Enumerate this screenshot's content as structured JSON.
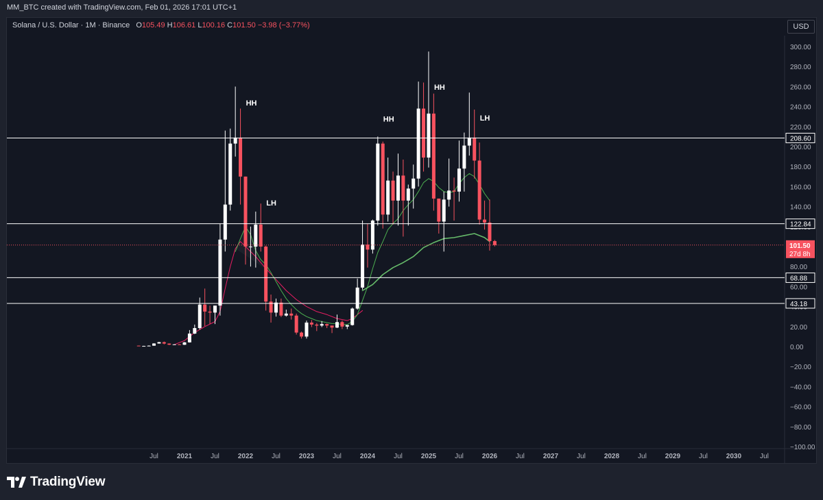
{
  "header": {
    "title": "MM_BTC created with TradingView.com, Feb 01, 2026 17:01 UTC+1"
  },
  "symbol": {
    "name": "Solana / U.S. Dollar · 1M · Binance",
    "o_label": "O",
    "o_value": "105.49",
    "h_label": "H",
    "h_value": "106.61",
    "l_label": "L",
    "l_value": "100.16",
    "c_label": "C",
    "c_value": "101.50",
    "change": "−3.98 (−3.77%)"
  },
  "currency": "USD",
  "brand": {
    "name": "TradingView"
  },
  "colors": {
    "up": "#ffffff",
    "down": "#f7525f",
    "background": "#131722",
    "ma_fast": "#4caf50",
    "ma_slow": "#e91e63",
    "ma_long": "#66bb6a",
    "hline": "#ffffff",
    "price_line": "#f7525f"
  },
  "chart_data": {
    "type": "candlestick",
    "ylim": [
      -100,
      310
    ],
    "y_ticks": [
      300,
      280,
      260,
      240,
      220,
      200,
      180,
      160,
      140,
      120,
      100,
      80,
      60,
      40,
      20,
      0,
      -20,
      -40,
      -60,
      -80,
      -100
    ],
    "y_tick_labels": [
      "300.00",
      "280.00",
      "260.00",
      "240.00",
      "220.00",
      "200.00",
      "180.00",
      "160.00",
      "140.00",
      "120.00",
      "100.00",
      "80.00",
      "60.00",
      "40.00",
      "20.00",
      "0.00",
      "−20.00",
      "−40.00",
      "−60.00",
      "−80.00",
      "−100.00"
    ],
    "x_ticks": [
      {
        "label": "Jul",
        "date": "2020-07"
      },
      {
        "label": "2021",
        "date": "2021-01"
      },
      {
        "label": "Jul",
        "date": "2021-07"
      },
      {
        "label": "2022",
        "date": "2022-01"
      },
      {
        "label": "Jul",
        "date": "2022-07"
      },
      {
        "label": "2023",
        "date": "2023-01"
      },
      {
        "label": "Jul",
        "date": "2023-07"
      },
      {
        "label": "2024",
        "date": "2024-01"
      },
      {
        "label": "Jul",
        "date": "2024-07"
      },
      {
        "label": "2025",
        "date": "2025-01"
      },
      {
        "label": "Jul",
        "date": "2025-07"
      },
      {
        "label": "2026",
        "date": "2026-01"
      },
      {
        "label": "Jul",
        "date": "2026-07"
      },
      {
        "label": "2027",
        "date": "2027-01"
      },
      {
        "label": "Jul",
        "date": "2027-07"
      },
      {
        "label": "2028",
        "date": "2028-01"
      },
      {
        "label": "Jul",
        "date": "2028-07"
      },
      {
        "label": "2029",
        "date": "2029-01"
      },
      {
        "label": "Jul",
        "date": "2029-07"
      },
      {
        "label": "2030",
        "date": "2030-01"
      },
      {
        "label": "Jul",
        "date": "2030-07"
      }
    ],
    "candles": [
      {
        "date": "2020-04",
        "o": 0.95,
        "h": 1.0,
        "l": 0.5,
        "c": 0.6
      },
      {
        "date": "2020-05",
        "o": 0.6,
        "h": 0.8,
        "l": 0.5,
        "c": 0.65
      },
      {
        "date": "2020-06",
        "o": 0.65,
        "h": 1.2,
        "l": 0.6,
        "c": 0.9
      },
      {
        "date": "2020-07",
        "o": 0.9,
        "h": 3.3,
        "l": 0.9,
        "c": 3.1
      },
      {
        "date": "2020-08",
        "o": 3.1,
        "h": 4.7,
        "l": 2.9,
        "c": 4.4
      },
      {
        "date": "2020-09",
        "o": 4.4,
        "h": 5.0,
        "l": 2.2,
        "c": 3.0
      },
      {
        "date": "2020-10",
        "o": 3.0,
        "h": 3.2,
        "l": 1.5,
        "c": 1.9
      },
      {
        "date": "2020-11",
        "o": 1.9,
        "h": 2.4,
        "l": 1.8,
        "c": 2.2
      },
      {
        "date": "2020-12",
        "o": 2.2,
        "h": 2.5,
        "l": 1.8,
        "c": 1.8
      },
      {
        "date": "2021-01",
        "o": 1.8,
        "h": 4.5,
        "l": 1.6,
        "c": 4.2
      },
      {
        "date": "2021-02",
        "o": 4.2,
        "h": 16.5,
        "l": 4.0,
        "c": 13.0
      },
      {
        "date": "2021-03",
        "o": 13.0,
        "h": 22.0,
        "l": 12.5,
        "c": 18.5
      },
      {
        "date": "2021-04",
        "o": 18.5,
        "h": 49.0,
        "l": 17.0,
        "c": 42.0
      },
      {
        "date": "2021-05",
        "o": 42.0,
        "h": 58.0,
        "l": 20.5,
        "c": 35.0
      },
      {
        "date": "2021-06",
        "o": 35.0,
        "h": 41.0,
        "l": 22.5,
        "c": 34.0
      },
      {
        "date": "2021-07",
        "o": 34.0,
        "h": 39.0,
        "l": 22.5,
        "c": 41.0
      },
      {
        "date": "2021-08",
        "o": 41.0,
        "h": 123.0,
        "l": 31.0,
        "c": 107.0
      },
      {
        "date": "2021-09",
        "o": 107.0,
        "h": 216.0,
        "l": 95.0,
        "c": 142.0
      },
      {
        "date": "2021-10",
        "o": 142.0,
        "h": 218.0,
        "l": 136.0,
        "c": 203.0
      },
      {
        "date": "2021-11",
        "o": 203.0,
        "h": 260.0,
        "l": 190.0,
        "c": 209.0
      },
      {
        "date": "2021-12",
        "o": 209.0,
        "h": 238.0,
        "l": 142.0,
        "c": 170.0
      },
      {
        "date": "2022-01",
        "o": 170.0,
        "h": 170.0,
        "l": 82.0,
        "c": 100.0
      },
      {
        "date": "2022-02",
        "o": 100.0,
        "h": 120.0,
        "l": 80.0,
        "c": 100.0
      },
      {
        "date": "2022-03",
        "o": 100.0,
        "h": 135.0,
        "l": 79.0,
        "c": 122.0
      },
      {
        "date": "2022-04",
        "o": 122.0,
        "h": 143.0,
        "l": 95.0,
        "c": 100.0
      },
      {
        "date": "2022-05",
        "o": 100.0,
        "h": 101.0,
        "l": 36.0,
        "c": 45.0
      },
      {
        "date": "2022-06",
        "o": 45.0,
        "h": 52.0,
        "l": 24.0,
        "c": 34.0
      },
      {
        "date": "2022-07",
        "o": 34.0,
        "h": 48.0,
        "l": 30.0,
        "c": 44.0
      },
      {
        "date": "2022-08",
        "o": 44.0,
        "h": 48.0,
        "l": 29.5,
        "c": 31.0
      },
      {
        "date": "2022-09",
        "o": 31.0,
        "h": 37.0,
        "l": 30.0,
        "c": 33.0
      },
      {
        "date": "2022-10",
        "o": 33.0,
        "h": 38.0,
        "l": 27.0,
        "c": 31.0
      },
      {
        "date": "2022-11",
        "o": 31.0,
        "h": 33.0,
        "l": 12.0,
        "c": 14.0
      },
      {
        "date": "2022-12",
        "o": 14.0,
        "h": 15.0,
        "l": 8.0,
        "c": 10.0
      },
      {
        "date": "2023-01",
        "o": 10.0,
        "h": 26.0,
        "l": 8.0,
        "c": 24.0
      },
      {
        "date": "2023-02",
        "o": 24.0,
        "h": 26.5,
        "l": 19.5,
        "c": 22.0
      },
      {
        "date": "2023-03",
        "o": 22.0,
        "h": 23.5,
        "l": 15.5,
        "c": 21.0
      },
      {
        "date": "2023-04",
        "o": 21.0,
        "h": 25.5,
        "l": 19.5,
        "c": 22.5
      },
      {
        "date": "2023-05",
        "o": 22.5,
        "h": 23.0,
        "l": 18.5,
        "c": 21.0
      },
      {
        "date": "2023-06",
        "o": 21.0,
        "h": 21.0,
        "l": 13.5,
        "c": 19.0
      },
      {
        "date": "2023-07",
        "o": 19.0,
        "h": 32.0,
        "l": 18.5,
        "c": 24.5
      },
      {
        "date": "2023-08",
        "o": 24.5,
        "h": 26.0,
        "l": 17.5,
        "c": 20.0
      },
      {
        "date": "2023-09",
        "o": 20.0,
        "h": 21.5,
        "l": 17.5,
        "c": 21.5
      },
      {
        "date": "2023-10",
        "o": 21.5,
        "h": 39.0,
        "l": 21.0,
        "c": 38.0
      },
      {
        "date": "2023-11",
        "o": 38.0,
        "h": 68.0,
        "l": 37.0,
        "c": 59.0
      },
      {
        "date": "2023-12",
        "o": 59.0,
        "h": 126.0,
        "l": 57.0,
        "c": 102.0
      },
      {
        "date": "2024-01",
        "o": 102.0,
        "h": 123.0,
        "l": 79.0,
        "c": 97.0
      },
      {
        "date": "2024-02",
        "o": 97.0,
        "h": 127.0,
        "l": 93.0,
        "c": 126.0
      },
      {
        "date": "2024-03",
        "o": 126.0,
        "h": 210.0,
        "l": 121.0,
        "c": 203.0
      },
      {
        "date": "2024-04",
        "o": 203.0,
        "h": 205.0,
        "l": 118.0,
        "c": 132.0
      },
      {
        "date": "2024-05",
        "o": 132.0,
        "h": 189.0,
        "l": 125.0,
        "c": 166.0
      },
      {
        "date": "2024-06",
        "o": 166.0,
        "h": 175.0,
        "l": 122.0,
        "c": 146.0
      },
      {
        "date": "2024-07",
        "o": 146.0,
        "h": 193.0,
        "l": 121.0,
        "c": 171.0
      },
      {
        "date": "2024-08",
        "o": 171.0,
        "h": 187.0,
        "l": 110.0,
        "c": 146.0
      },
      {
        "date": "2024-09",
        "o": 146.0,
        "h": 162.0,
        "l": 121.0,
        "c": 158.0
      },
      {
        "date": "2024-10",
        "o": 158.0,
        "h": 182.0,
        "l": 138.0,
        "c": 168.0
      },
      {
        "date": "2024-11",
        "o": 168.0,
        "h": 265.0,
        "l": 160.0,
        "c": 238.0
      },
      {
        "date": "2024-12",
        "o": 238.0,
        "h": 264.0,
        "l": 175.0,
        "c": 189.0
      },
      {
        "date": "2025-01",
        "o": 189.0,
        "h": 295.0,
        "l": 179.0,
        "c": 233.0
      },
      {
        "date": "2025-02",
        "o": 233.0,
        "h": 253.0,
        "l": 136.0,
        "c": 148.0
      },
      {
        "date": "2025-03",
        "o": 148.0,
        "h": 148.0,
        "l": 113.0,
        "c": 125.0
      },
      {
        "date": "2025-04",
        "o": 125.0,
        "h": 155.0,
        "l": 95.0,
        "c": 147.0
      },
      {
        "date": "2025-05",
        "o": 147.0,
        "h": 188.0,
        "l": 140.0,
        "c": 156.0
      },
      {
        "date": "2025-06",
        "o": 156.0,
        "h": 169.0,
        "l": 126.0,
        "c": 155.0
      },
      {
        "date": "2025-07",
        "o": 155.0,
        "h": 206.0,
        "l": 145.0,
        "c": 178.0
      },
      {
        "date": "2025-08",
        "o": 178.0,
        "h": 214.0,
        "l": 155.0,
        "c": 201.0
      },
      {
        "date": "2025-09",
        "o": 201.0,
        "h": 254.0,
        "l": 191.0,
        "c": 209.0
      },
      {
        "date": "2025-10",
        "o": 209.0,
        "h": 237.0,
        "l": 168.0,
        "c": 186.0
      },
      {
        "date": "2025-11",
        "o": 186.0,
        "h": 204.0,
        "l": 122.0,
        "c": 127.0
      },
      {
        "date": "2025-12",
        "o": 127.0,
        "h": 146.0,
        "l": 117.0,
        "c": 124.0
      },
      {
        "date": "2026-01",
        "o": 124.0,
        "h": 147.0,
        "l": 96.0,
        "c": 105.5
      },
      {
        "date": "2026-02",
        "o": 105.49,
        "h": 106.61,
        "l": 100.16,
        "c": 101.5
      }
    ],
    "ma_fast": [
      {
        "date": "2021-11",
        "v": 95
      },
      {
        "date": "2021-12",
        "v": 108
      },
      {
        "date": "2022-01",
        "v": 120
      },
      {
        "date": "2022-02",
        "v": 112
      },
      {
        "date": "2022-03",
        "v": 96
      },
      {
        "date": "2022-04",
        "v": 87
      },
      {
        "date": "2022-05",
        "v": 82
      },
      {
        "date": "2022-06",
        "v": 74
      },
      {
        "date": "2022-07",
        "v": 65
      },
      {
        "date": "2022-08",
        "v": 56
      },
      {
        "date": "2022-09",
        "v": 48
      },
      {
        "date": "2022-10",
        "v": 42
      },
      {
        "date": "2022-11",
        "v": 37
      },
      {
        "date": "2022-12",
        "v": 33
      },
      {
        "date": "2023-01",
        "v": 30
      },
      {
        "date": "2023-02",
        "v": 28
      },
      {
        "date": "2023-03",
        "v": 26
      },
      {
        "date": "2023-04",
        "v": 25
      },
      {
        "date": "2023-05",
        "v": 24
      },
      {
        "date": "2023-06",
        "v": 23
      },
      {
        "date": "2023-07",
        "v": 23
      },
      {
        "date": "2023-08",
        "v": 22
      },
      {
        "date": "2023-09",
        "v": 22
      },
      {
        "date": "2023-10",
        "v": 25
      },
      {
        "date": "2023-11",
        "v": 32
      },
      {
        "date": "2023-12",
        "v": 46
      },
      {
        "date": "2024-01",
        "v": 60
      },
      {
        "date": "2024-02",
        "v": 78
      },
      {
        "date": "2024-03",
        "v": 94
      },
      {
        "date": "2024-04",
        "v": 105
      },
      {
        "date": "2024-05",
        "v": 117
      },
      {
        "date": "2024-06",
        "v": 123
      },
      {
        "date": "2024-07",
        "v": 128
      },
      {
        "date": "2024-08",
        "v": 136
      },
      {
        "date": "2024-09",
        "v": 142
      },
      {
        "date": "2024-10",
        "v": 147
      },
      {
        "date": "2024-11",
        "v": 155
      },
      {
        "date": "2024-12",
        "v": 164
      },
      {
        "date": "2025-01",
        "v": 168
      },
      {
        "date": "2025-02",
        "v": 165
      },
      {
        "date": "2025-03",
        "v": 159
      },
      {
        "date": "2025-04",
        "v": 155
      },
      {
        "date": "2025-05",
        "v": 154
      },
      {
        "date": "2025-06",
        "v": 155
      },
      {
        "date": "2025-07",
        "v": 163
      },
      {
        "date": "2025-08",
        "v": 169
      },
      {
        "date": "2025-09",
        "v": 173
      },
      {
        "date": "2025-10",
        "v": 170
      },
      {
        "date": "2025-11",
        "v": 162
      },
      {
        "date": "2025-12",
        "v": 153
      },
      {
        "date": "2026-01",
        "v": 146
      }
    ],
    "ma_slow": [
      {
        "date": "2020-11",
        "v": 2
      },
      {
        "date": "2021-01",
        "v": 6
      },
      {
        "date": "2021-03",
        "v": 14
      },
      {
        "date": "2021-05",
        "v": 20
      },
      {
        "date": "2021-07",
        "v": 25
      },
      {
        "date": "2021-08",
        "v": 35
      },
      {
        "date": "2021-09",
        "v": 58
      },
      {
        "date": "2021-10",
        "v": 80
      },
      {
        "date": "2021-11",
        "v": 98
      },
      {
        "date": "2021-12",
        "v": 105
      },
      {
        "date": "2022-01",
        "v": 100
      },
      {
        "date": "2022-03",
        "v": 90
      },
      {
        "date": "2022-05",
        "v": 78
      },
      {
        "date": "2022-07",
        "v": 67
      },
      {
        "date": "2022-09",
        "v": 56
      },
      {
        "date": "2022-11",
        "v": 47
      },
      {
        "date": "2023-01",
        "v": 40
      },
      {
        "date": "2023-03",
        "v": 35
      },
      {
        "date": "2023-05",
        "v": 32
      },
      {
        "date": "2023-07",
        "v": 28
      },
      {
        "date": "2023-09",
        "v": 26
      },
      {
        "date": "2023-10",
        "v": 28
      },
      {
        "date": "2023-12",
        "v": 36
      }
    ],
    "ma_long": [
      {
        "date": "2023-12",
        "v": 56
      },
      {
        "date": "2024-02",
        "v": 62
      },
      {
        "date": "2024-04",
        "v": 72
      },
      {
        "date": "2024-06",
        "v": 79
      },
      {
        "date": "2024-08",
        "v": 84
      },
      {
        "date": "2024-10",
        "v": 90
      },
      {
        "date": "2024-12",
        "v": 99
      },
      {
        "date": "2025-02",
        "v": 104
      },
      {
        "date": "2025-04",
        "v": 108
      },
      {
        "date": "2025-06",
        "v": 109
      },
      {
        "date": "2025-08",
        "v": 111
      },
      {
        "date": "2025-10",
        "v": 113
      },
      {
        "date": "2025-12",
        "v": 109
      },
      {
        "date": "2026-01",
        "v": 105
      }
    ],
    "levels": [
      {
        "value": 208.6,
        "label": "208.60"
      },
      {
        "value": 122.84,
        "label": "122.84"
      },
      {
        "value": 68.88,
        "label": "68.88"
      },
      {
        "value": 43.18,
        "label": "43.18"
      }
    ],
    "current_price": {
      "value": 101.5,
      "label": "101.50",
      "countdown": "27d 8h"
    },
    "annotations": [
      {
        "text": "HH",
        "date": "2021-12",
        "y": 241
      },
      {
        "text": "LH",
        "date": "2022-04",
        "y": 141
      },
      {
        "text": "HH",
        "date": "2024-03",
        "y": 225
      },
      {
        "text": "HH",
        "date": "2025-01",
        "y": 257
      },
      {
        "text": "LH",
        "date": "2025-10",
        "y": 226
      }
    ]
  }
}
